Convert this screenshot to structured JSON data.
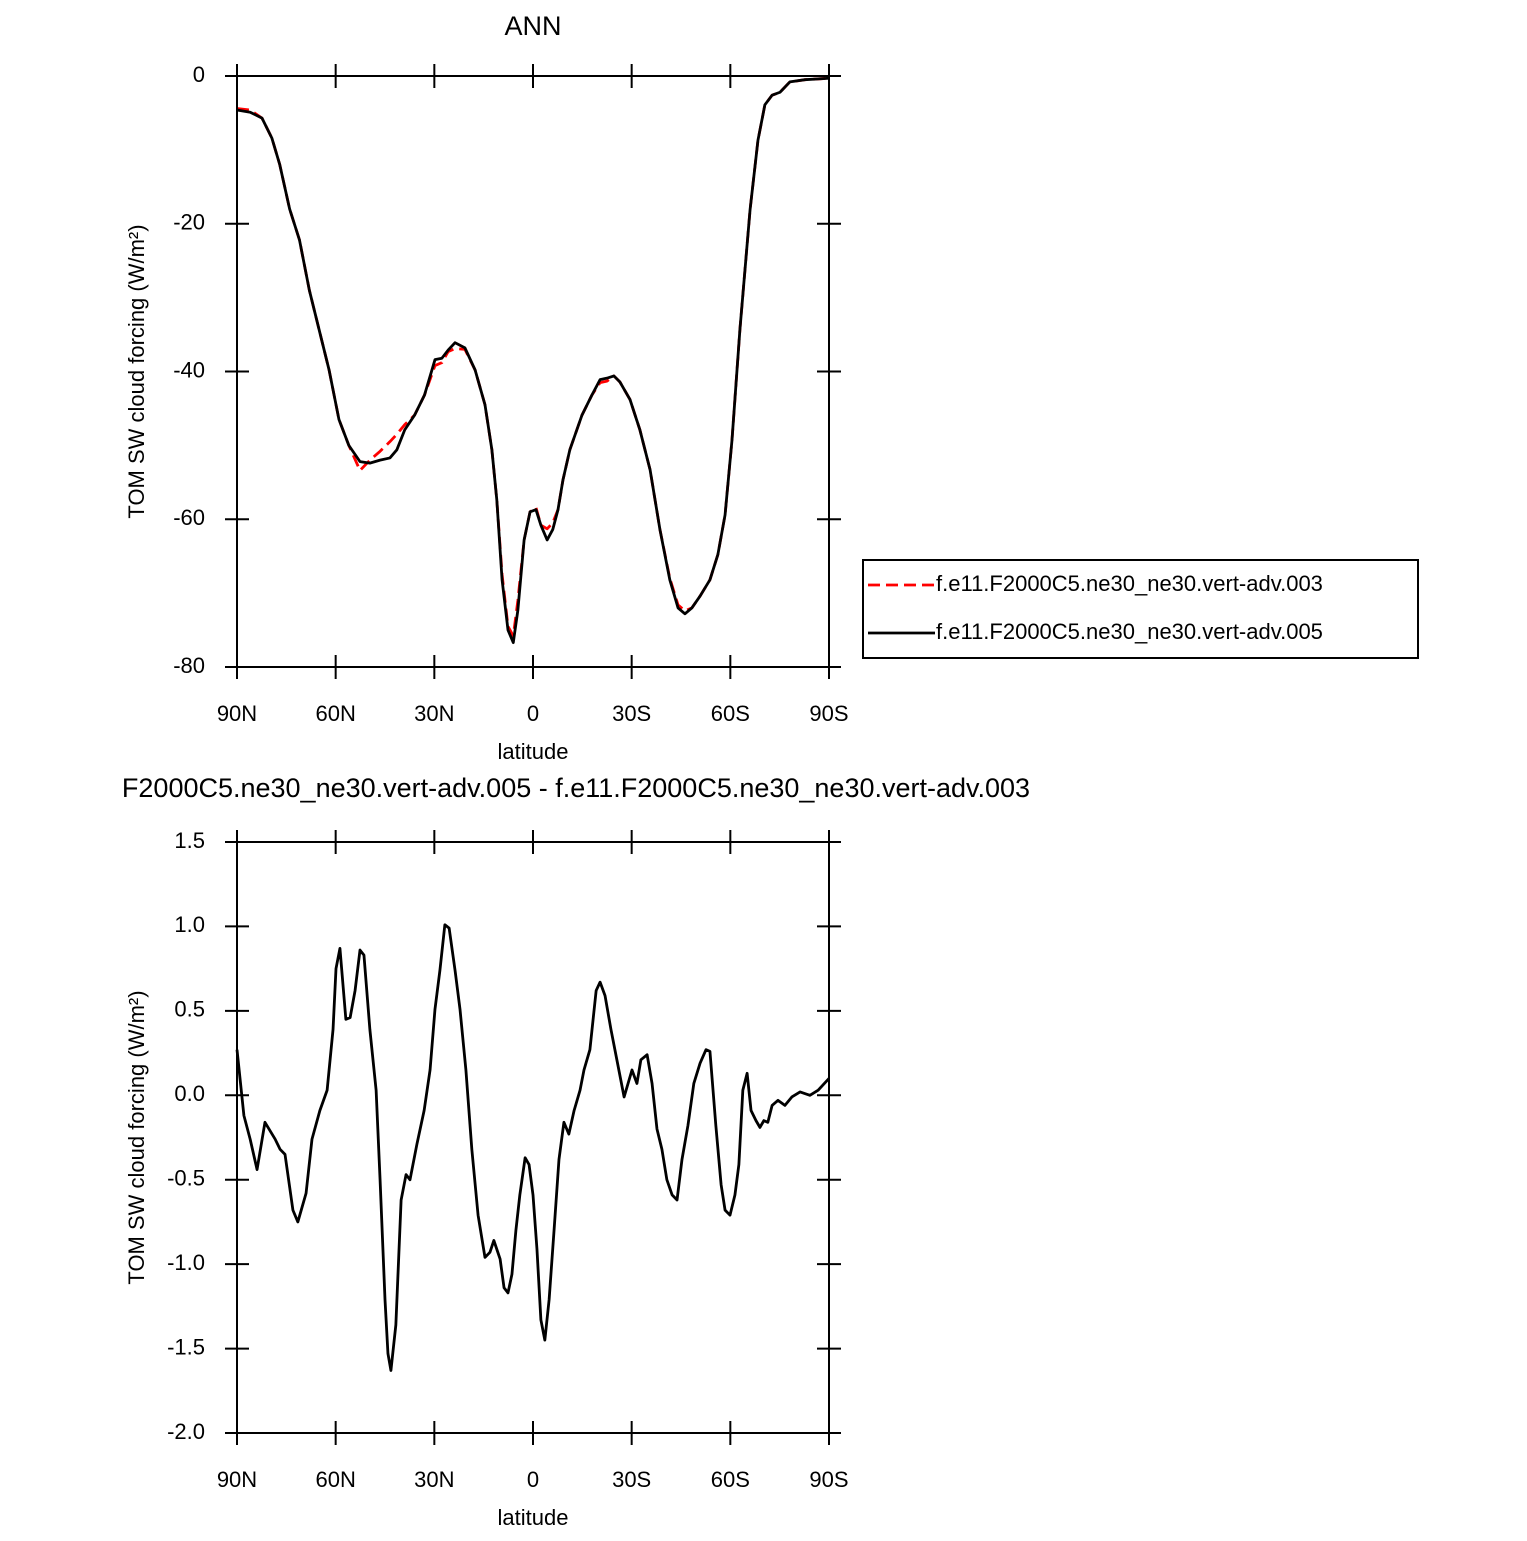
{
  "chart_data": [
    {
      "type": "line",
      "title": "ANN",
      "xlabel": "latitude",
      "ylabel": "TOM SW cloud forcing (W/m²)",
      "xlim": [
        90,
        -90
      ],
      "xticks": [
        {
          "value": 90,
          "label": "90N"
        },
        {
          "value": 60,
          "label": "60N"
        },
        {
          "value": 30,
          "label": "30N"
        },
        0,
        {
          "value": -30,
          "label": "30S"
        },
        {
          "value": -60,
          "label": "60S"
        },
        {
          "value": -90,
          "label": "90S"
        }
      ],
      "ylim": [
        -80,
        0
      ],
      "yticks": [
        -80,
        -60,
        -40,
        -20,
        0
      ],
      "legend": "right",
      "x": [
        90,
        86,
        82.4,
        79.4,
        77,
        74,
        71,
        68,
        65,
        62,
        59,
        56,
        52.6,
        49.6,
        46.5,
        43.5,
        41.4,
        39,
        36,
        33,
        29.8,
        27.7,
        25.8,
        23.7,
        20.7,
        17.6,
        14.6,
        12.5,
        11,
        9.4,
        7.6,
        6,
        4.6,
        2.7,
        0.9,
        -0.9,
        -2.4,
        -4.3,
        -6,
        -7.6,
        -9.1,
        -11.2,
        -14.9,
        -17.9,
        -20.4,
        -22.5,
        -24.6,
        -26.4,
        -29.5,
        -32.5,
        -35.6,
        -38.6,
        -41.6,
        -44.1,
        -46.2,
        -48.3,
        -50.8,
        -53.8,
        -56.2,
        -58.4,
        -60.5,
        -62.9,
        -66,
        -68.4,
        -70.5,
        -72.7,
        -75.1,
        -78.1,
        -82.7,
        -90
      ],
      "series": [
        {
          "name": "f.e11.F2000C5.ne30_ne30.vert-adv.003",
          "color": "#ff0000",
          "linestyle": "dashed",
          "values": [
            -4.4,
            -4.6,
            -5.7,
            -8.4,
            -12,
            -18,
            -22.2,
            -29,
            -34.4,
            -39.8,
            -46.5,
            -50,
            -53.4,
            -52.0,
            -50.8,
            -49.5,
            -48.5,
            -47.2,
            -45.9,
            -43.2,
            -39.2,
            -38.8,
            -37.3,
            -36.9,
            -37.0,
            -39.8,
            -44.5,
            -50.6,
            -57.4,
            -67.5,
            -74.5,
            -75.8,
            -71,
            -62.8,
            -59,
            -58.4,
            -60.8,
            -61.3,
            -60.5,
            -58.7,
            -54.7,
            -50.6,
            -45.9,
            -43.2,
            -41.5,
            -41.3,
            -40.6,
            -41.4,
            -43.8,
            -47.9,
            -53.3,
            -61.4,
            -68,
            -71.6,
            -72.4,
            -72,
            -70.4,
            -68.2,
            -64.8,
            -59.4,
            -49.3,
            -34.4,
            -18.1,
            -8.7,
            -3.9,
            -2.6,
            -2.2,
            -0.8,
            -0.5,
            -0.3
          ]
        },
        {
          "name": "f.e11.F2000C5.ne30_ne30.vert-adv.005",
          "color": "#000000",
          "linestyle": "solid",
          "values": [
            -4.6,
            -4.9,
            -5.7,
            -8.4,
            -12,
            -18,
            -22.2,
            -29,
            -34.4,
            -39.8,
            -46.5,
            -50,
            -52.2,
            -52.4,
            -52,
            -51.7,
            -50.6,
            -47.9,
            -45.9,
            -43.2,
            -38.4,
            -38.2,
            -37.1,
            -36.1,
            -36.8,
            -39.8,
            -44.5,
            -50.6,
            -57.4,
            -68.2,
            -75,
            -76.7,
            -72.3,
            -62.8,
            -59,
            -58.7,
            -60.8,
            -62.8,
            -61.4,
            -58.7,
            -54.7,
            -50.6,
            -45.9,
            -43.2,
            -41.1,
            -40.9,
            -40.6,
            -41.4,
            -43.8,
            -47.9,
            -53.3,
            -61.4,
            -68.2,
            -72,
            -72.8,
            -72,
            -70.4,
            -68.2,
            -64.8,
            -59.4,
            -49.3,
            -34.4,
            -18.1,
            -8.7,
            -3.9,
            -2.6,
            -2.2,
            -0.8,
            -0.5,
            -0.3
          ]
        }
      ]
    },
    {
      "type": "line",
      "title": "F2000C5.ne30_ne30.vert-adv.005 - f.e11.F2000C5.ne30_ne30.vert-adv.003",
      "xlabel": "latitude",
      "ylabel": "TOM SW cloud forcing (W/m²)",
      "xlim": [
        90,
        -90
      ],
      "xticks": [
        {
          "value": 90,
          "label": "90N"
        },
        {
          "value": 60,
          "label": "60N"
        },
        {
          "value": 30,
          "label": "30N"
        },
        0,
        {
          "value": -30,
          "label": "30S"
        },
        {
          "value": -60,
          "label": "60S"
        },
        {
          "value": -90,
          "label": "90S"
        }
      ],
      "ylim": [
        -2,
        1.5
      ],
      "yticks": [
        {
          "value": -2,
          "label": "-2.0"
        },
        -1.5,
        {
          "value": -1,
          "label": "-1.0"
        },
        -0.5,
        {
          "value": 0,
          "label": "0.0"
        },
        0.5,
        {
          "value": 1,
          "label": "1.0"
        },
        1.5
      ],
      "color": "#000000",
      "linestyle": "solid",
      "x": [
        90,
        87.9,
        86,
        83.9,
        81.5,
        78.4,
        76.9,
        75.4,
        73,
        71.5,
        69,
        67.2,
        64.8,
        62.6,
        60.8,
        59.9,
        58.7,
        56.9,
        55.6,
        54.1,
        52.6,
        51.4,
        49.6,
        47.7,
        46.5,
        45,
        44.1,
        43.2,
        41.7,
        40.1,
        38.6,
        37.4,
        35.3,
        33.1,
        31.3,
        29.8,
        28.3,
        26.8,
        25.5,
        23.7,
        22.2,
        20.4,
        18.6,
        16.7,
        14.6,
        13.1,
        11.9,
        10,
        8.8,
        7.6,
        6.4,
        5.2,
        4,
        2.4,
        1.2,
        0,
        -1.2,
        -2.4,
        -3.6,
        -4.9,
        -6.4,
        -7.9,
        -9.4,
        -10.9,
        -12.5,
        -14.3,
        -15.5,
        -17.3,
        -19.2,
        -20.4,
        -21.9,
        -23.7,
        -25.5,
        -27.7,
        -28.9,
        -30.1,
        -31.6,
        -32.8,
        -34.7,
        -36.2,
        -37.7,
        -39.2,
        -40.7,
        -42.3,
        -43.8,
        -45.3,
        -47.1,
        -48.9,
        -50.8,
        -52.6,
        -53.8,
        -55.6,
        -57.2,
        -58.4,
        -59.9,
        -61.4,
        -62.6,
        -63.8,
        -65.1,
        -66.3,
        -67.8,
        -69,
        -70.2,
        -71.4,
        -72.7,
        -74.5,
        -76.6,
        -78.7,
        -81.2,
        -84.2,
        -86.7,
        -90
      ],
      "values": [
        0.27,
        -0.12,
        -0.26,
        -0.44,
        -0.16,
        -0.26,
        -0.32,
        -0.35,
        -0.68,
        -0.75,
        -0.58,
        -0.26,
        -0.09,
        0.03,
        0.39,
        0.75,
        0.87,
        0.45,
        0.46,
        0.62,
        0.86,
        0.83,
        0.39,
        0.03,
        -0.5,
        -1.21,
        -1.53,
        -1.63,
        -1.36,
        -0.62,
        -0.47,
        -0.5,
        -0.29,
        -0.09,
        0.15,
        0.51,
        0.74,
        1.01,
        0.99,
        0.74,
        0.51,
        0.15,
        -0.32,
        -0.71,
        -0.96,
        -0.93,
        -0.86,
        -0.97,
        -1.14,
        -1.17,
        -1.06,
        -0.8,
        -0.59,
        -0.37,
        -0.41,
        -0.59,
        -0.91,
        -1.33,
        -1.45,
        -1.21,
        -0.8,
        -0.38,
        -0.16,
        -0.23,
        -0.09,
        0.03,
        0.15,
        0.27,
        0.62,
        0.67,
        0.59,
        0.39,
        0.21,
        -0.01,
        0.07,
        0.15,
        0.07,
        0.21,
        0.24,
        0.07,
        -0.2,
        -0.32,
        -0.5,
        -0.59,
        -0.62,
        -0.38,
        -0.18,
        0.07,
        0.19,
        0.27,
        0.26,
        -0.18,
        -0.53,
        -0.68,
        -0.71,
        -0.59,
        -0.41,
        0.03,
        0.13,
        -0.09,
        -0.15,
        -0.19,
        -0.15,
        -0.16,
        -0.06,
        -0.03,
        -0.06,
        -0.01,
        0.02,
        0,
        0.03,
        0.1
      ]
    }
  ]
}
